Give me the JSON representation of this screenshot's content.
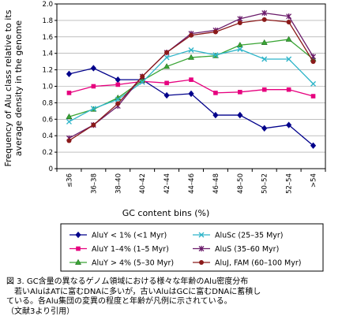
{
  "chart_data": {
    "type": "line",
    "ylabel": "Frequency of Alu class relative to its average density in the genome",
    "ylabel_lines": [
      "Frequency of Alu class relative to its",
      "average density in the genome"
    ],
    "xlabel": "GC content bins (%)",
    "categories": [
      "≤36",
      "36–38",
      "38–40",
      "40–42",
      "42–44",
      "44–46",
      "46–48",
      "48–50",
      "50–52",
      "52–54",
      ">54"
    ],
    "ylim": [
      0,
      2.0
    ],
    "yticks": [
      "0",
      "0.2",
      "0.4",
      "0.6",
      "0.8",
      "1.0",
      "1.2",
      "1.4",
      "1.6",
      "1.8",
      "2.0"
    ],
    "legend_position": "bottom",
    "series": [
      {
        "name": "AluY < 1%  (<1 Myr)",
        "color": "#00008b",
        "marker": "diamond",
        "values": [
          1.15,
          1.22,
          1.08,
          1.08,
          0.89,
          0.91,
          0.65,
          0.65,
          0.49,
          0.53,
          0.28
        ]
      },
      {
        "name": "AluY 1–4%  (1–5 Myr)",
        "color": "#e6007e",
        "marker": "square",
        "values": [
          0.92,
          1.0,
          1.02,
          1.06,
          1.04,
          1.08,
          0.92,
          0.93,
          0.96,
          0.96,
          0.88
        ]
      },
      {
        "name": "AluY > 4%  (5–30 Myr)",
        "color": "#3aa535",
        "marker": "triangle",
        "values": [
          0.63,
          0.72,
          0.86,
          1.07,
          1.24,
          1.35,
          1.37,
          1.5,
          1.53,
          1.57,
          1.33
        ]
      },
      {
        "name": "AluSc (25–35 Myr)",
        "color": "#2fb5c9",
        "marker": "x",
        "values": [
          0.57,
          0.73,
          0.84,
          1.05,
          1.35,
          1.44,
          1.38,
          1.45,
          1.33,
          1.33,
          1.03
        ]
      },
      {
        "name": "AluS (35–60 Myr)",
        "color": "#6a1b6a",
        "marker": "star",
        "values": [
          0.37,
          0.53,
          0.76,
          1.12,
          1.41,
          1.64,
          1.68,
          1.82,
          1.89,
          1.85,
          1.36
        ]
      },
      {
        "name": "AluJ, FAM (60–100 Myr)",
        "color": "#8b1a1a",
        "marker": "circle",
        "values": [
          0.34,
          0.53,
          0.79,
          1.12,
          1.41,
          1.62,
          1.66,
          1.77,
          1.81,
          1.78,
          1.3
        ]
      }
    ]
  },
  "caption": {
    "title": "図 3. GC含量の異なるゲノム領域における様々な年齢のAlu密度分布",
    "lines": [
      "　若いAluはATに富むDNAに多いが，古いAluはGCに富むDNAに蓄積し",
      "ている。各Alu集団の変異の程度と年齢が凡例に示されている。",
      "（文献3より引用）"
    ]
  }
}
